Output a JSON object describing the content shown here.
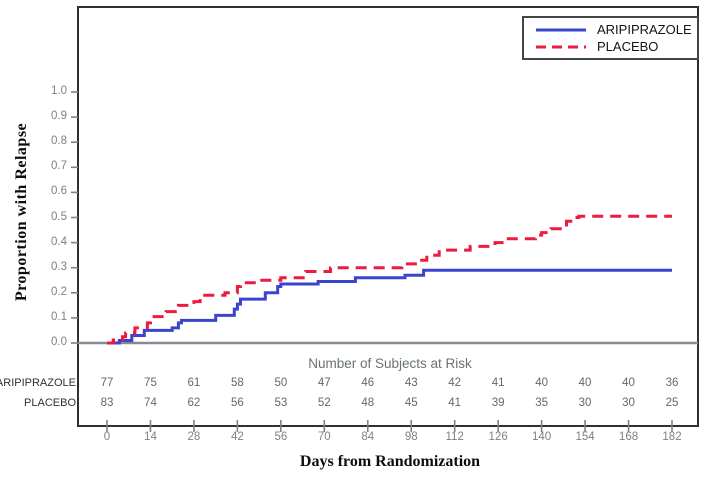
{
  "figure": {
    "y_axis_title": "Proportion with Relapse",
    "x_axis_title": "Days from Randomization"
  },
  "legend": {
    "items": [
      {
        "label": "ARIPIPRAZOLE",
        "color": "#3b44cf",
        "style": "solid"
      },
      {
        "label": "PLACEBO",
        "color": "#ee1b41",
        "style": "dashed"
      }
    ]
  },
  "risk_table": {
    "title": "Number of Subjects at Risk",
    "days": [
      0,
      14,
      28,
      42,
      56,
      70,
      84,
      98,
      112,
      126,
      140,
      154,
      168,
      182
    ],
    "rows": [
      {
        "label": "ARIPIPRAZOLE",
        "counts": [
          77,
          75,
          61,
          58,
          50,
          47,
          46,
          43,
          42,
          41,
          40,
          40,
          40,
          36
        ]
      },
      {
        "label": "PLACEBO",
        "counts": [
          83,
          74,
          62,
          56,
          53,
          52,
          48,
          45,
          41,
          39,
          35,
          30,
          30,
          25
        ]
      }
    ]
  },
  "chart_data": {
    "type": "line",
    "subtype": "kaplan-meier-cumulative-incidence-step",
    "title": "",
    "xlabel": "Days from Randomization",
    "ylabel": "Proportion with Relapse",
    "xlim": [
      0,
      182
    ],
    "ylim": [
      0.0,
      1.0
    ],
    "x_ticks": [
      0,
      14,
      28,
      42,
      56,
      70,
      84,
      98,
      112,
      126,
      140,
      154,
      168,
      182
    ],
    "y_ticks": [
      "0.0",
      "0.1",
      "0.2",
      "0.3",
      "0.4",
      "0.5",
      "0.6",
      "0.7",
      "0.8",
      "0.9",
      "1.0"
    ],
    "grid": false,
    "baseline_y": 0.0,
    "legend_position": "top-right",
    "series": [
      {
        "name": "ARIPIPRAZOLE",
        "color": "#3b44cf",
        "line_style": "solid",
        "final_value": 0.29,
        "points": [
          [
            0,
            0
          ],
          [
            4,
            0.01
          ],
          [
            8,
            0.03
          ],
          [
            12,
            0.05
          ],
          [
            21,
            0.06
          ],
          [
            23,
            0.08
          ],
          [
            24,
            0.09
          ],
          [
            35,
            0.11
          ],
          [
            41,
            0.135
          ],
          [
            42,
            0.155
          ],
          [
            43,
            0.175
          ],
          [
            51,
            0.2
          ],
          [
            55,
            0.225
          ],
          [
            56,
            0.235
          ],
          [
            68,
            0.245
          ],
          [
            80,
            0.26
          ],
          [
            96,
            0.27
          ],
          [
            102,
            0.29
          ],
          [
            182,
            0.29
          ]
        ]
      },
      {
        "name": "PLACEBO",
        "color": "#ee1b41",
        "line_style": "dashed",
        "final_value": 0.51,
        "points": [
          [
            0,
            0
          ],
          [
            2,
            0.012
          ],
          [
            5,
            0.025
          ],
          [
            6,
            0.04
          ],
          [
            9,
            0.06
          ],
          [
            13,
            0.08
          ],
          [
            14,
            0.105
          ],
          [
            19,
            0.125
          ],
          [
            22,
            0.14
          ],
          [
            23,
            0.15
          ],
          [
            28,
            0.165
          ],
          [
            30,
            0.18
          ],
          [
            31,
            0.19
          ],
          [
            38,
            0.2
          ],
          [
            42,
            0.225
          ],
          [
            43,
            0.24
          ],
          [
            48,
            0.25
          ],
          [
            56,
            0.26
          ],
          [
            64,
            0.285
          ],
          [
            72,
            0.3
          ],
          [
            95,
            0.315
          ],
          [
            100,
            0.33
          ],
          [
            103,
            0.35
          ],
          [
            107,
            0.37
          ],
          [
            117,
            0.385
          ],
          [
            125,
            0.4
          ],
          [
            128,
            0.415
          ],
          [
            138,
            0.43
          ],
          [
            140,
            0.44
          ],
          [
            143,
            0.455
          ],
          [
            146,
            0.47
          ],
          [
            148,
            0.485
          ],
          [
            150,
            0.5
          ],
          [
            152,
            0.505
          ],
          [
            182,
            0.505
          ]
        ]
      }
    ],
    "colors": {
      "axis_frame": "#303030",
      "zero_line": "#858c90",
      "tick": "#79838a"
    }
  }
}
